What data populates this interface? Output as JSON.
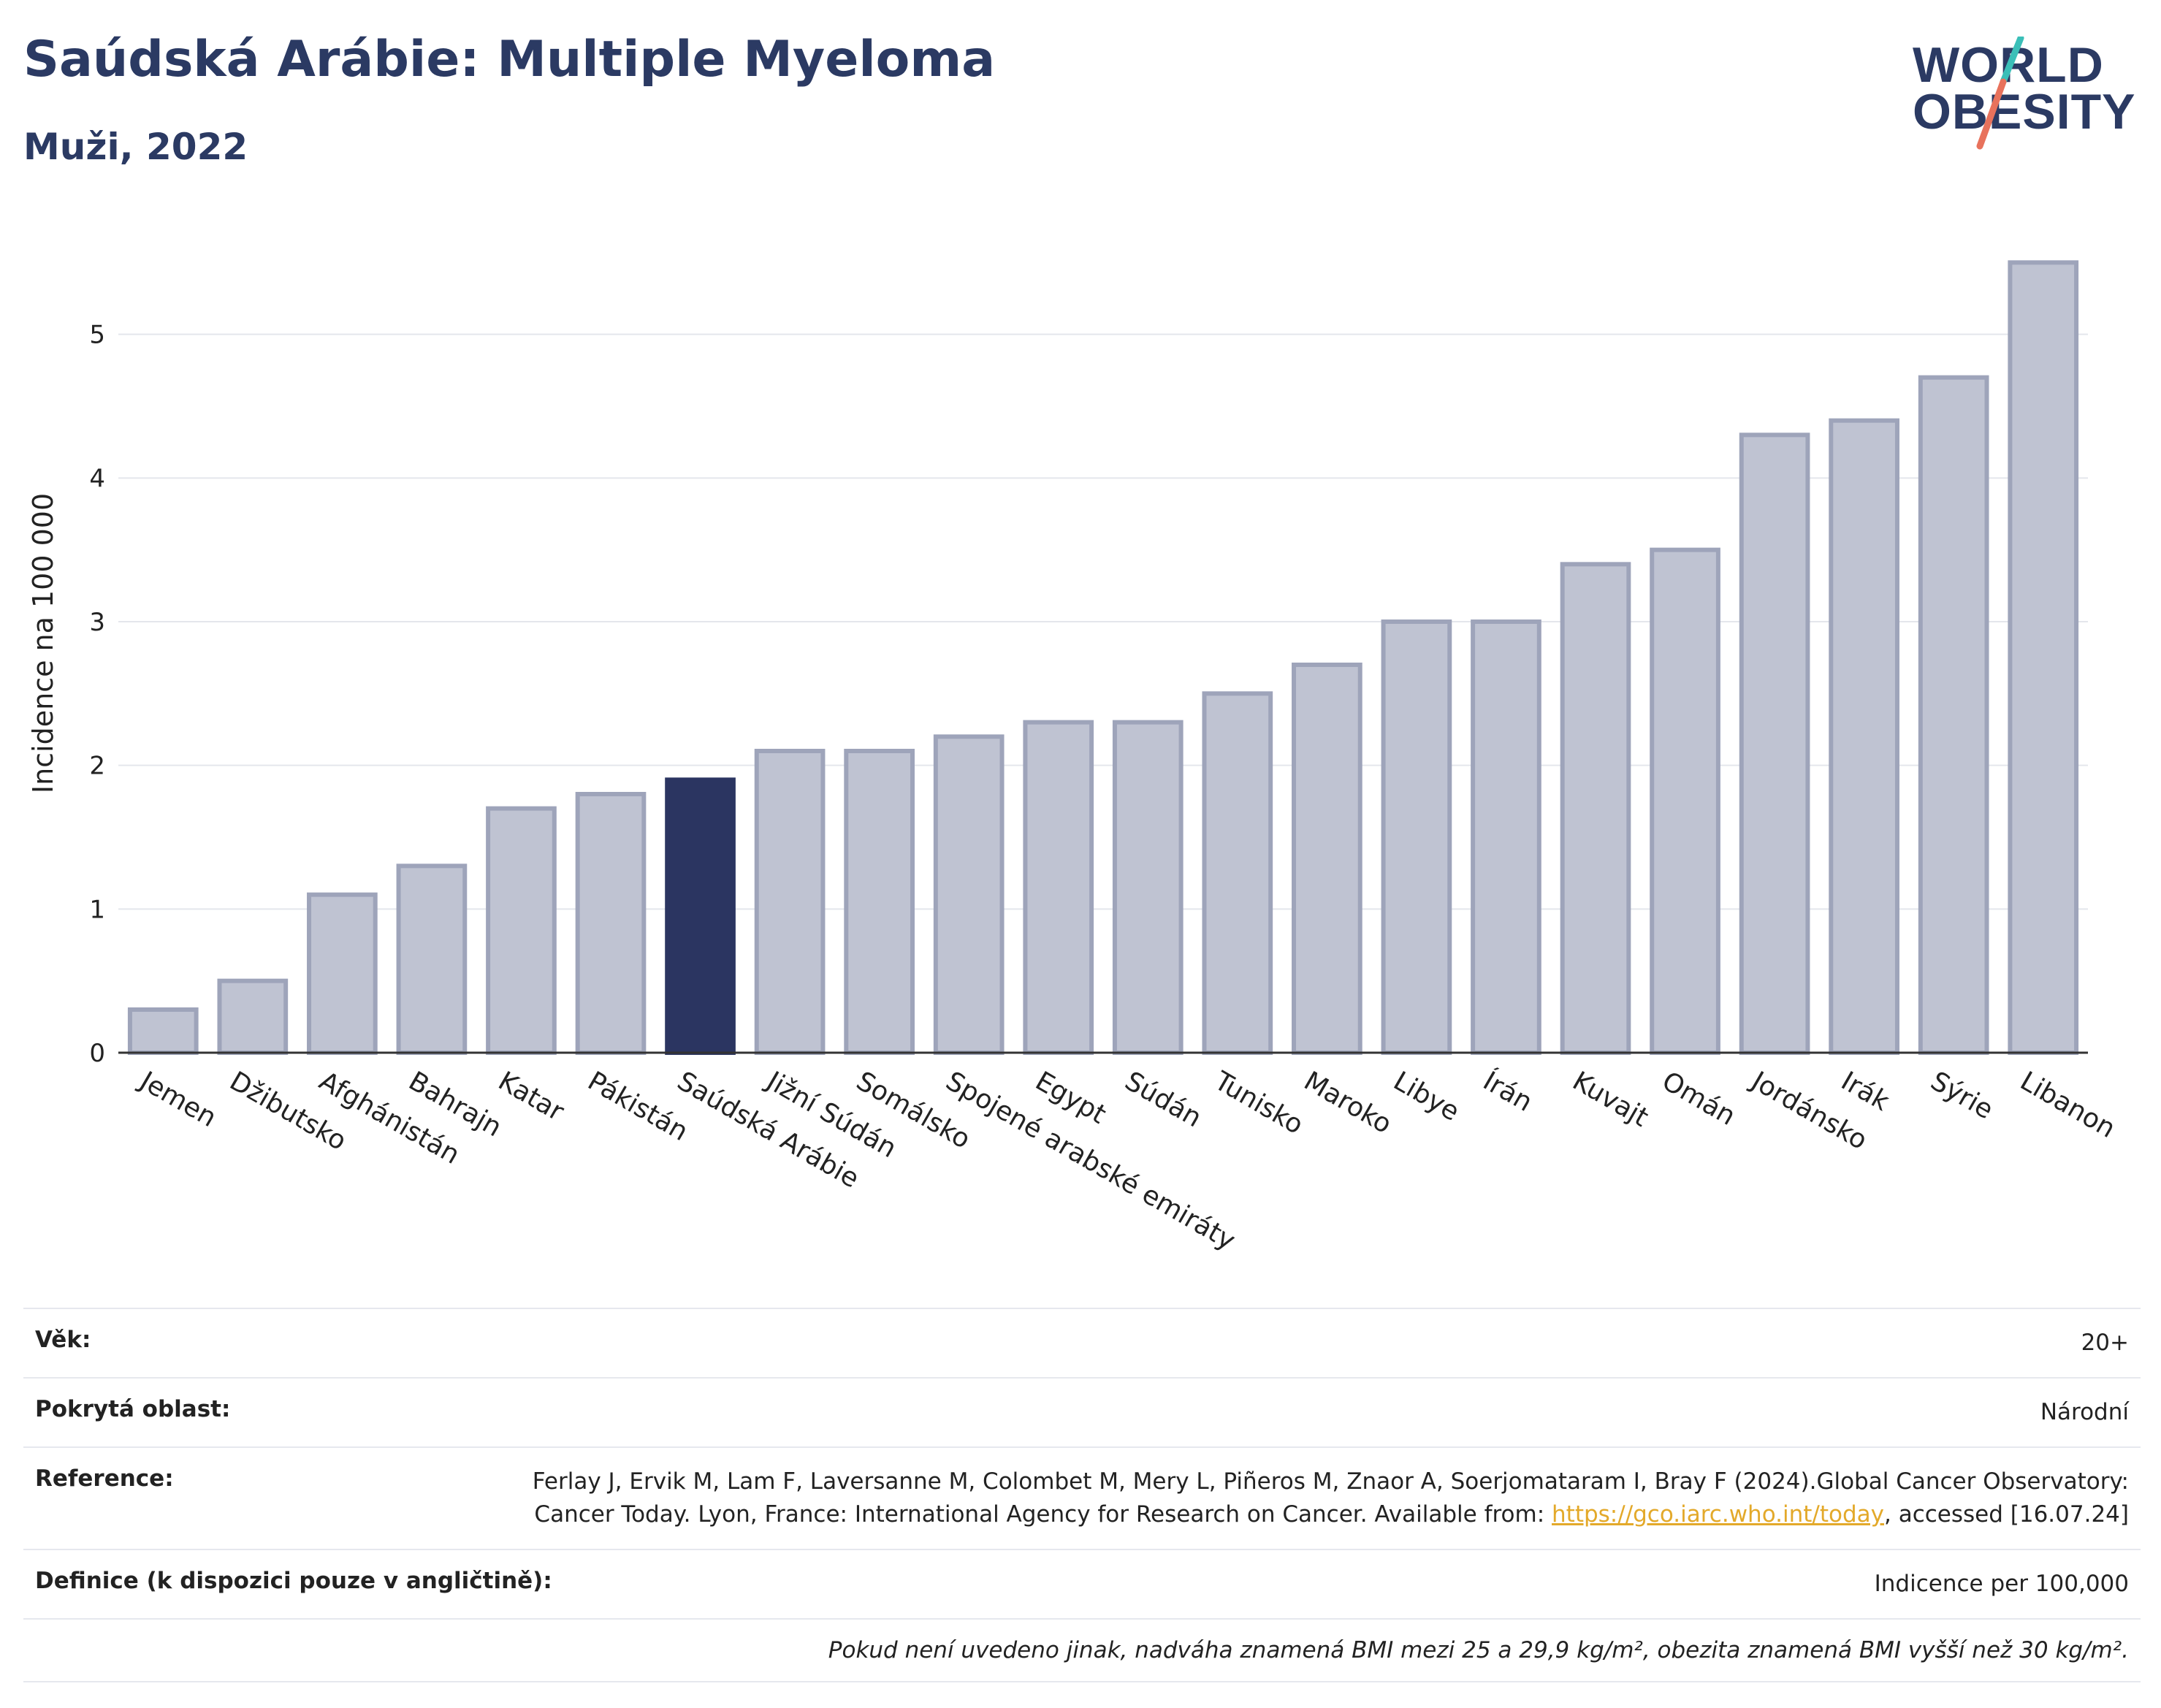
{
  "header": {
    "title": "Saúdská Arábie: Multiple Myeloma",
    "subtitle": "Muži, 2022",
    "logo_line1": "WORLD",
    "logo_line2": "OBESITY"
  },
  "colors": {
    "bar": "#bfc3d2",
    "bar_stroke": "#9ea4ba",
    "highlight": "#2b3561",
    "title": "#2b3a63",
    "link": "#e3a92a"
  },
  "chart_data": {
    "type": "bar",
    "ylabel": "Incidence na 100 000",
    "ylim": [
      0,
      5.7
    ],
    "yticks": [
      0,
      1,
      2,
      3,
      4,
      5
    ],
    "grid": true,
    "highlight": "Saúdská Arábie",
    "categories": [
      "Jemen",
      "Džibutsko",
      "Afghánistán",
      "Bahrajn",
      "Katar",
      "Pákistán",
      "Saúdská Arábie",
      "Jižní Súdán",
      "Somálsko",
      "Spojené arabské emiráty",
      "Egypt",
      "Súdán",
      "Tunisko",
      "Maroko",
      "Libye",
      "Írán",
      "Kuvajt",
      "Omán",
      "Jordánsko",
      "Irák",
      "Sýrie",
      "Libanon"
    ],
    "values": [
      0.3,
      0.5,
      1.1,
      1.3,
      1.7,
      1.8,
      1.9,
      2.1,
      2.1,
      2.2,
      2.3,
      2.3,
      2.5,
      2.7,
      3.0,
      3.0,
      3.4,
      3.5,
      4.3,
      4.4,
      4.7,
      5.5
    ]
  },
  "info": {
    "age_label": "Věk:",
    "age_value": "20+",
    "area_label": "Pokrytá oblast:",
    "area_value": "Národní",
    "ref_label": "Reference:",
    "ref_text_1": "Ferlay J, Ervik M, Lam F, Laversanne M, Colombet M, Mery L, Piñeros M, Znaor A, Soerjomataram I, Bray F (2024).Global Cancer Observatory: Cancer Today. Lyon, France: International Agency for Research on Cancer. Available from: ",
    "ref_link": "https://gco.iarc.who.int/today",
    "ref_text_2": ", accessed [16.07.24]",
    "def_label": "Definice (k dispozici pouze v angličtině):",
    "def_value": "Indicence per 100,000",
    "note": "Pokud není uvedeno jinak, nadváha znamená BMI mezi 25 a 29,9 kg/m², obezita znamená BMI vyšší než 30 kg/m²."
  }
}
